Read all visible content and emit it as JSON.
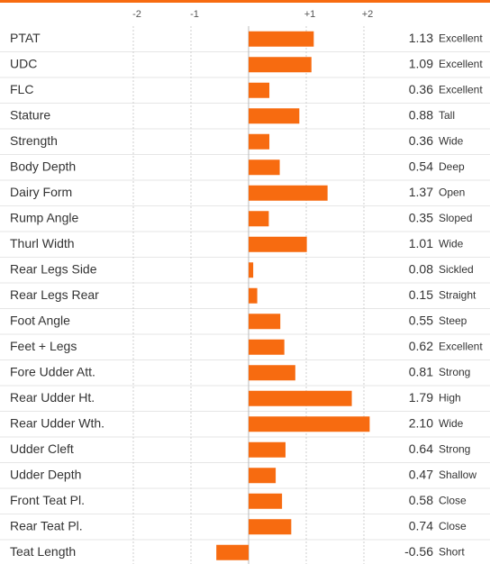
{
  "chart_data": {
    "type": "barh",
    "categories": [
      "PTAT",
      "UDC",
      "FLC",
      "Stature",
      "Strength",
      "Body Depth",
      "Dairy Form",
      "Rump Angle",
      "Thurl Width",
      "Rear Legs Side",
      "Rear Legs Rear",
      "Foot Angle",
      "Feet + Legs",
      "Fore Udder Att.",
      "Rear Udder Ht.",
      "Rear Udder Wth.",
      "Udder Cleft",
      "Udder Depth",
      "Front Teat Pl.",
      "Rear Teat Pl.",
      "Teat Length"
    ],
    "values": [
      1.13,
      1.09,
      0.36,
      0.88,
      0.36,
      0.54,
      1.37,
      0.35,
      1.01,
      0.08,
      0.15,
      0.55,
      0.62,
      0.81,
      1.79,
      2.1,
      0.64,
      0.47,
      0.58,
      0.74,
      -0.56
    ],
    "value_labels": [
      "1.13",
      "1.09",
      "0.36",
      "0.88",
      "0.36",
      "0.54",
      "1.37",
      "0.35",
      "1.01",
      "0.08",
      "0.15",
      "0.55",
      "0.62",
      "0.81",
      "1.79",
      "2.10",
      "0.64",
      "0.47",
      "0.58",
      "0.74",
      "-0.56"
    ],
    "descriptions": [
      "Excellent",
      "Excellent",
      "Excellent",
      "Tall",
      "Wide",
      "Deep",
      "Open",
      "Sloped",
      "Wide",
      "Sickled",
      "Straight",
      "Steep",
      "Excellent",
      "Strong",
      "High",
      "Wide",
      "Strong",
      "Shallow",
      "Close",
      "Close",
      "Short"
    ],
    "color": "#f76b10",
    "xlim": [
      -2,
      2
    ],
    "xticks": [
      -2,
      -1,
      {
        "value": 1,
        "label": "+1"
      },
      {
        "value": 2,
        "label": "+2"
      }
    ],
    "grid": true
  }
}
